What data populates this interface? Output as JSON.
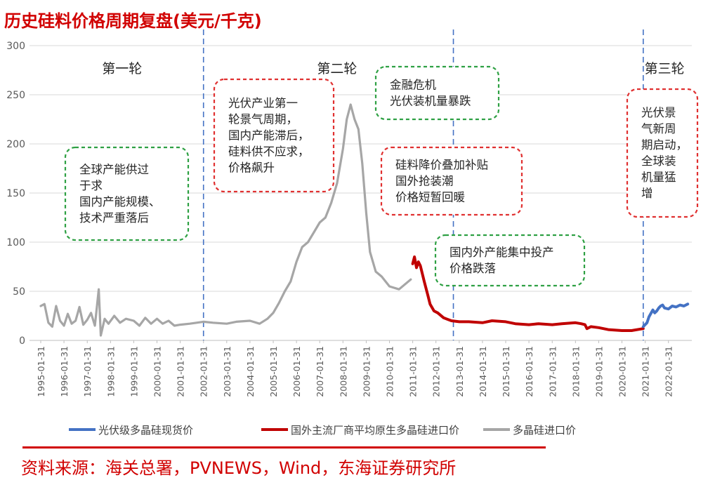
{
  "title": "历史硅料价格周期复盘(美元/千克)",
  "source": "资料来源：海关总署，PVNEWS，Wind，东海证券研究所",
  "colors": {
    "accent": "#d10000",
    "spot_series": "#4472c4",
    "import_avg_series": "#c00000",
    "import_series": "#a6a6a6",
    "green_box": "#2ea043",
    "red_box": "#e03030",
    "divider": "#4472c4"
  },
  "chart_data": {
    "type": "line",
    "ylim": [
      0,
      300
    ],
    "yticks": [
      0,
      50,
      100,
      150,
      200,
      250,
      300
    ],
    "xlim": [
      "1995-01-31",
      "2022-12-31"
    ],
    "xticks": [
      "1995-01-31",
      "1996-01-31",
      "1997-01-31",
      "1998-01-31",
      "1999-01-31",
      "2000-01-31",
      "2001-01-31",
      "2002-01-31",
      "2003-01-31",
      "2004-01-31",
      "2005-01-31",
      "2006-01-31",
      "2007-01-31",
      "2008-01-31",
      "2009-01-31",
      "2010-01-31",
      "2011-01-31",
      "2012-01-31",
      "2013-01-31",
      "2014-01-31",
      "2015-01-31",
      "2016-01-31",
      "2017-01-31",
      "2018-01-31",
      "2019-01-31",
      "2020-01-31",
      "2021-01-31",
      "2022-01-31"
    ],
    "grid": true,
    "legend_position": "bottom",
    "series": [
      {
        "name": "光伏级多晶硅现货价",
        "color": "#4472c4",
        "points": [
          [
            "2020-12-31",
            14
          ],
          [
            "2021-02-28",
            18
          ],
          [
            "2021-03-31",
            24
          ],
          [
            "2021-05-31",
            31
          ],
          [
            "2021-06-30",
            28
          ],
          [
            "2021-07-31",
            30
          ],
          [
            "2021-08-31",
            33
          ],
          [
            "2021-09-30",
            35
          ],
          [
            "2021-10-31",
            36
          ],
          [
            "2021-11-30",
            33
          ],
          [
            "2022-01-31",
            32
          ],
          [
            "2022-03-31",
            35
          ],
          [
            "2022-05-31",
            34
          ],
          [
            "2022-07-31",
            36
          ],
          [
            "2022-09-30",
            35
          ],
          [
            "2022-11-30",
            37
          ]
        ]
      },
      {
        "name": "国外主流厂商平均原生多晶硅进口价",
        "color": "#c00000",
        "points": [
          [
            "2011-01-31",
            78
          ],
          [
            "2011-02-28",
            85
          ],
          [
            "2011-03-31",
            74
          ],
          [
            "2011-04-30",
            80
          ],
          [
            "2011-05-31",
            76
          ],
          [
            "2011-07-31",
            60
          ],
          [
            "2011-09-30",
            45
          ],
          [
            "2011-10-31",
            37
          ],
          [
            "2011-12-31",
            30
          ],
          [
            "2012-02-29",
            28
          ],
          [
            "2012-05-31",
            23
          ],
          [
            "2012-09-30",
            20
          ],
          [
            "2013-01-31",
            19
          ],
          [
            "2013-06-30",
            19
          ],
          [
            "2014-01-31",
            18
          ],
          [
            "2014-06-30",
            20
          ],
          [
            "2015-01-31",
            19
          ],
          [
            "2015-06-30",
            17
          ],
          [
            "2016-01-31",
            16
          ],
          [
            "2016-06-30",
            17
          ],
          [
            "2017-01-31",
            16
          ],
          [
            "2017-06-30",
            17
          ],
          [
            "2018-01-31",
            18
          ],
          [
            "2018-04-30",
            17
          ],
          [
            "2018-06-30",
            16
          ],
          [
            "2018-07-31",
            12
          ],
          [
            "2018-09-30",
            14
          ],
          [
            "2019-01-31",
            13
          ],
          [
            "2019-06-30",
            11
          ],
          [
            "2020-01-31",
            10
          ],
          [
            "2020-06-30",
            10
          ],
          [
            "2020-12-31",
            12
          ]
        ]
      },
      {
        "name": "多晶硅进口价",
        "color": "#a6a6a6",
        "points": [
          [
            "1995-01-31",
            35
          ],
          [
            "1995-03-31",
            37
          ],
          [
            "1995-05-31",
            18
          ],
          [
            "1995-07-31",
            14
          ],
          [
            "1995-09-30",
            35
          ],
          [
            "1995-11-30",
            20
          ],
          [
            "1996-01-31",
            15
          ],
          [
            "1996-03-31",
            27
          ],
          [
            "1996-05-31",
            17
          ],
          [
            "1996-07-31",
            20
          ],
          [
            "1996-09-30",
            34
          ],
          [
            "1996-11-30",
            16
          ],
          [
            "1997-01-31",
            21
          ],
          [
            "1997-03-31",
            28
          ],
          [
            "1997-05-31",
            15
          ],
          [
            "1997-07-31",
            52
          ],
          [
            "1997-08-31",
            5
          ],
          [
            "1997-10-31",
            22
          ],
          [
            "1997-12-31",
            17
          ],
          [
            "1998-03-31",
            25
          ],
          [
            "1998-06-30",
            18
          ],
          [
            "1998-09-30",
            22
          ],
          [
            "1999-01-31",
            20
          ],
          [
            "1999-04-30",
            15
          ],
          [
            "1999-07-31",
            23
          ],
          [
            "1999-10-31",
            17
          ],
          [
            "2000-01-31",
            22
          ],
          [
            "2000-04-30",
            17
          ],
          [
            "2000-07-31",
            20
          ],
          [
            "2000-10-31",
            15
          ],
          [
            "2001-01-31",
            16
          ],
          [
            "2001-06-30",
            17
          ],
          [
            "2002-01-31",
            19
          ],
          [
            "2002-06-30",
            18
          ],
          [
            "2003-01-31",
            17
          ],
          [
            "2003-06-30",
            19
          ],
          [
            "2004-01-31",
            20
          ],
          [
            "2004-06-30",
            17
          ],
          [
            "2004-10-31",
            22
          ],
          [
            "2005-01-31",
            28
          ],
          [
            "2005-04-30",
            38
          ],
          [
            "2005-07-31",
            50
          ],
          [
            "2005-10-31",
            60
          ],
          [
            "2006-01-31",
            80
          ],
          [
            "2006-04-30",
            95
          ],
          [
            "2006-07-31",
            100
          ],
          [
            "2006-10-31",
            110
          ],
          [
            "2007-01-31",
            120
          ],
          [
            "2007-04-30",
            125
          ],
          [
            "2007-07-31",
            140
          ],
          [
            "2007-10-31",
            160
          ],
          [
            "2008-01-31",
            195
          ],
          [
            "2008-03-31",
            225
          ],
          [
            "2008-05-31",
            240
          ],
          [
            "2008-07-31",
            225
          ],
          [
            "2008-09-30",
            215
          ],
          [
            "2008-11-30",
            180
          ],
          [
            "2009-01-31",
            130
          ],
          [
            "2009-03-31",
            90
          ],
          [
            "2009-06-30",
            70
          ],
          [
            "2009-09-30",
            65
          ],
          [
            "2010-01-31",
            55
          ],
          [
            "2010-06-30",
            52
          ],
          [
            "2010-12-31",
            62
          ]
        ]
      }
    ],
    "dividers": [
      "2002-01-31",
      "2012-10-31",
      "2020-12-31"
    ],
    "phase_labels": [
      {
        "text": "第一轮",
        "x": "1998-07-31",
        "y": 278
      },
      {
        "text": "第二轮",
        "x": "2007-10-31",
        "y": 278
      },
      {
        "text": "第三轮",
        "x": "2021-11-30",
        "y": 278
      }
    ],
    "annotations": [
      {
        "lines": [
          "全球产能供过",
          "于求",
          "国内产能规模、",
          "技术严重落后"
        ],
        "style": "green"
      },
      {
        "lines": [
          "光伏产业第一",
          "轮景气周期，",
          "国内产能滞后，",
          "硅料供不应求，",
          "价格飙升"
        ],
        "style": "red"
      },
      {
        "lines": [
          "金融危机",
          "光伏装机量暴跌"
        ],
        "style": "green"
      },
      {
        "lines": [
          "硅料降价叠加补贴",
          "国外抢装潮",
          "价格短暂回暖"
        ],
        "style": "red"
      },
      {
        "lines": [
          "国内外产能集中投产",
          "价格跌落"
        ],
        "style": "green"
      },
      {
        "lines": [
          "光伏景",
          "气新周",
          "期启动，",
          "全球装",
          "机量猛",
          "增"
        ],
        "style": "red"
      }
    ]
  }
}
